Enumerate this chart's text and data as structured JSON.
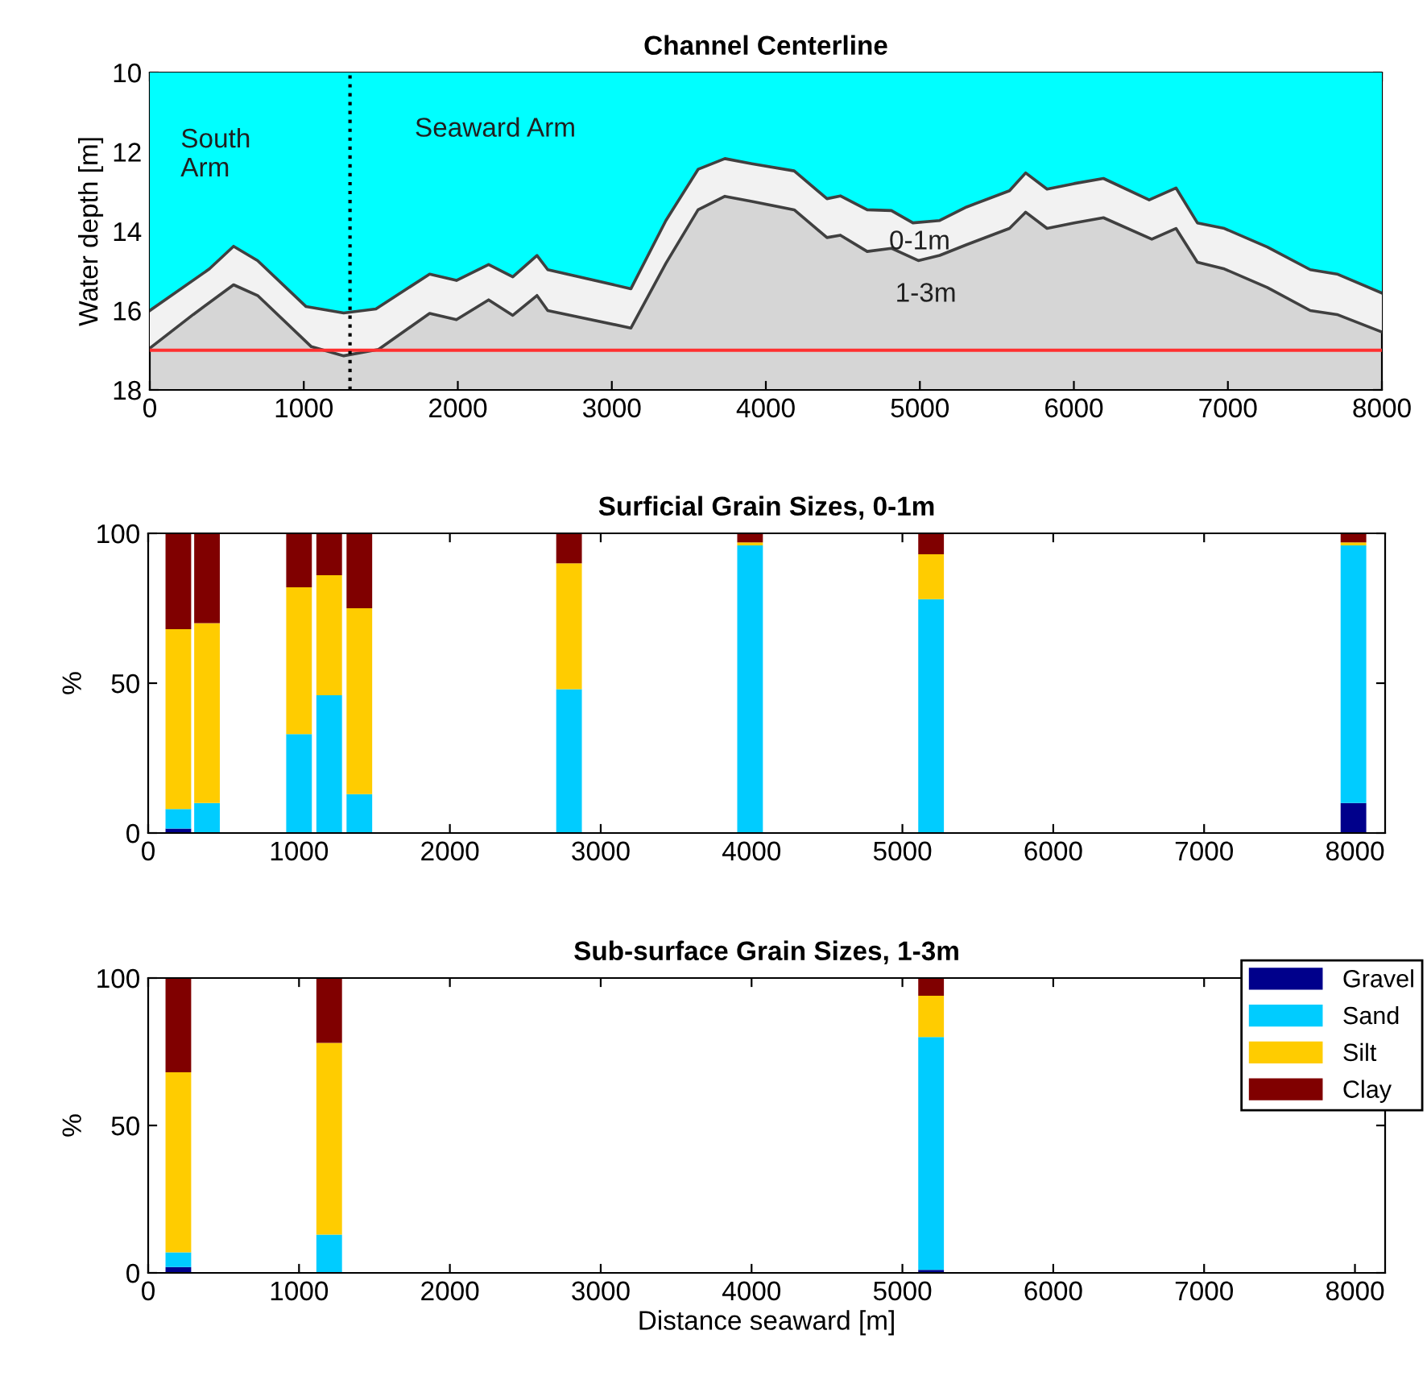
{
  "chart_data": [
    {
      "type": "area",
      "title": "Channel Centerline",
      "ylabel": "Water depth [m]",
      "xlim": [
        0,
        8000
      ],
      "xticks": [
        0,
        1000,
        2000,
        3000,
        4000,
        5000,
        6000,
        7000,
        8000
      ],
      "ylim": [
        18,
        10
      ],
      "yticks": [
        10,
        12,
        14,
        16,
        18
      ],
      "grid": false,
      "legend": false,
      "bands": [
        {
          "axis": "y",
          "from": 13.1,
          "to": 18,
          "color": "#d6d6d6"
        }
      ],
      "ref_lines": [
        {
          "axis": "y",
          "value": 17,
          "color": "#ff3030",
          "line_style": "solid"
        },
        {
          "axis": "x",
          "value": 1300,
          "color": "#000000",
          "line_style": "dotted"
        }
      ],
      "series": [
        {
          "color": "#00ffff",
          "x": [
            0,
            387,
            544,
            700,
            1015,
            1259,
            1468,
            1817,
            1991,
            2200,
            2357,
            2514,
            2584,
            3124,
            3351,
            3560,
            3734,
            3909,
            4184,
            4397,
            4484,
            4658,
            4815,
            4955,
            5129,
            5303,
            5582,
            5687,
            5826,
            6001,
            6192,
            6489,
            6663,
            6802,
            6977,
            7256,
            7535,
            7709,
            8000
          ],
          "values": [
            16.0,
            14.95,
            14.38,
            14.74,
            15.9,
            16.06,
            15.96,
            15.08,
            15.24,
            14.84,
            15.15,
            14.61,
            14.97,
            15.45,
            13.73,
            12.44,
            12.17,
            12.3,
            12.48,
            13.18,
            13.11,
            13.46,
            13.48,
            13.79,
            13.73,
            13.39,
            12.98,
            12.53,
            12.94,
            12.8,
            12.67,
            13.21,
            12.91,
            13.79,
            13.93,
            14.4,
            14.97,
            15.08,
            15.56
          ]
        },
        {
          "color": "#f2f2f2",
          "x": [
            0,
            282,
            544,
            700,
            1049,
            1259,
            1485,
            1817,
            1991,
            2200,
            2357,
            2514,
            2584,
            3124,
            3351,
            3560,
            3734,
            3909,
            4184,
            4397,
            4484,
            4658,
            4815,
            4990,
            5129,
            5303,
            5582,
            5687,
            5826,
            6001,
            6192,
            6506,
            6663,
            6802,
            6977,
            7256,
            7535,
            7709,
            8000
          ],
          "values": [
            16.95,
            16.1,
            15.35,
            15.62,
            16.91,
            17.14,
            16.98,
            16.07,
            16.23,
            15.73,
            16.12,
            15.62,
            16.0,
            16.44,
            14.81,
            13.46,
            13.12,
            13.25,
            13.46,
            14.16,
            14.1,
            14.51,
            14.43,
            14.74,
            14.61,
            14.34,
            13.93,
            13.52,
            13.93,
            13.79,
            13.66,
            14.2,
            13.93,
            14.78,
            14.95,
            15.42,
            16.0,
            16.1,
            16.54
          ]
        }
      ],
      "annotations": [
        "South\nArm",
        "Seaward Arm",
        "0-1m",
        "1-3m"
      ]
    },
    {
      "type": "bar",
      "stacked": true,
      "title": "Surficial Grain Sizes, 0-1m",
      "ylabel": "%",
      "x": [
        200,
        390,
        1000,
        1200,
        1400,
        2790,
        3990,
        5190,
        7990
      ],
      "xlim": [
        0,
        8200
      ],
      "xticks": [
        0,
        1000,
        2000,
        3000,
        4000,
        5000,
        6000,
        7000,
        8000
      ],
      "ylim": [
        0,
        100
      ],
      "yticks": [
        0,
        50,
        100
      ],
      "grid": false,
      "series": [
        {
          "color": "#00008b",
          "values": [
            1.5,
            0,
            0,
            0,
            0,
            0,
            0,
            0,
            10
          ]
        },
        {
          "color": "#00ccff",
          "values": [
            6.5,
            10,
            33,
            46,
            13,
            48,
            96,
            78,
            86
          ]
        },
        {
          "color": "#ffcc00",
          "values": [
            60,
            60,
            49,
            40,
            62,
            42,
            1,
            15,
            1
          ]
        },
        {
          "color": "#800000",
          "values": [
            32,
            30,
            18,
            14,
            25,
            10,
            3,
            7,
            3
          ]
        }
      ]
    },
    {
      "type": "bar",
      "stacked": true,
      "title": "Sub-surface Grain Sizes, 1-3m",
      "ylabel": "%",
      "xlabel": "Distance seaward [m]",
      "x": [
        200,
        1200,
        5190
      ],
      "xlim": [
        0,
        8200
      ],
      "xticks": [
        0,
        1000,
        2000,
        3000,
        4000,
        5000,
        6000,
        7000,
        8000
      ],
      "ylim": [
        0,
        100
      ],
      "yticks": [
        0,
        50,
        100
      ],
      "grid": false,
      "legend": "top right",
      "series": [
        {
          "name": "Gravel",
          "color": "#00008b",
          "values": [
            2,
            0,
            1
          ]
        },
        {
          "name": "Sand",
          "color": "#00ccff",
          "values": [
            5,
            13,
            79
          ]
        },
        {
          "name": "Silt",
          "color": "#ffcc00",
          "values": [
            61,
            65,
            14
          ]
        },
        {
          "name": "Clay",
          "color": "#800000",
          "values": [
            32,
            22,
            6
          ]
        }
      ]
    }
  ]
}
